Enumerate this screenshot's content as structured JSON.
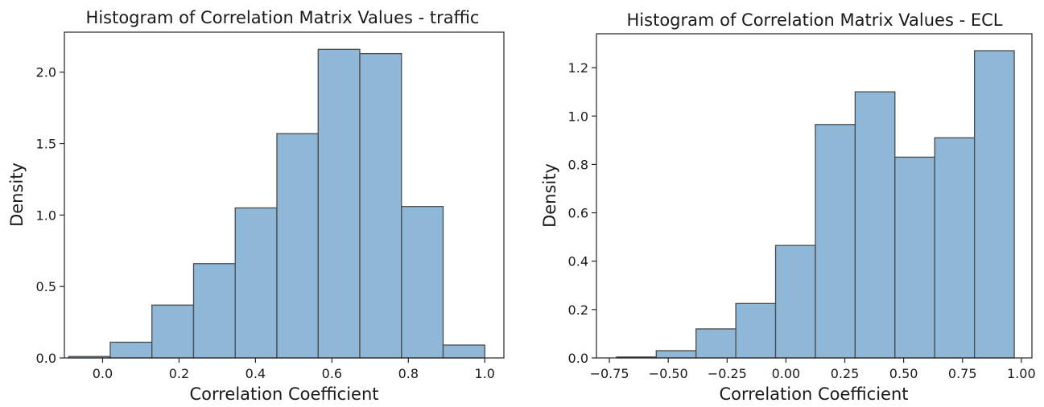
{
  "chart_data": [
    {
      "type": "bar",
      "title": "Histogram of Correlation Matrix Values - traffic",
      "xlabel": "Correlation Coefficient",
      "ylabel": "Density",
      "xlim": [
        -0.1,
        1.05
      ],
      "ylim": [
        0,
        2.28
      ],
      "xticks": [
        0.0,
        0.2,
        0.4,
        0.6,
        0.8,
        1.0
      ],
      "xtick_labels": [
        "0.0",
        "0.2",
        "0.4",
        "0.6",
        "0.8",
        "1.0"
      ],
      "yticks": [
        0.0,
        0.5,
        1.0,
        1.5,
        2.0
      ],
      "ytick_labels": [
        "0.0",
        "0.5",
        "1.0",
        "1.5",
        "2.0"
      ],
      "bin_edges": [
        -0.089,
        0.02,
        0.129,
        0.238,
        0.347,
        0.456,
        0.564,
        0.673,
        0.782,
        0.891,
        1.0
      ],
      "values": [
        0.01,
        0.11,
        0.37,
        0.66,
        1.05,
        1.57,
        2.16,
        2.13,
        1.06,
        0.09
      ],
      "color": "#8fb8d8",
      "edge_color": "#4a4a4a",
      "grid": false
    },
    {
      "type": "bar",
      "title": "Histogram of Correlation Matrix Values - ECL",
      "xlabel": "Correlation Coefficient",
      "ylabel": "Density",
      "xlim": [
        -0.805,
        1.045
      ],
      "ylim": [
        0,
        1.34
      ],
      "xticks": [
        -0.75,
        -0.5,
        -0.25,
        0.0,
        0.25,
        0.5,
        0.75,
        1.0
      ],
      "xtick_labels": [
        "−0.75",
        "−0.50",
        "−0.25",
        "0.00",
        "0.25",
        "0.50",
        "0.75",
        "1.00"
      ],
      "yticks": [
        0.0,
        0.2,
        0.4,
        0.6,
        0.8,
        1.0,
        1.2
      ],
      "ytick_labels": [
        "0.0",
        "0.2",
        "0.4",
        "0.6",
        "0.8",
        "1.0",
        "1.2"
      ],
      "bin_edges": [
        -0.72,
        -0.551,
        -0.382,
        -0.213,
        -0.044,
        0.125,
        0.294,
        0.463,
        0.632,
        0.801,
        0.97
      ],
      "values": [
        0.004,
        0.03,
        0.12,
        0.225,
        0.465,
        0.965,
        1.1,
        0.83,
        0.91,
        1.27
      ],
      "color": "#8fb8d8",
      "edge_color": "#4a4a4a",
      "grid": false
    }
  ]
}
